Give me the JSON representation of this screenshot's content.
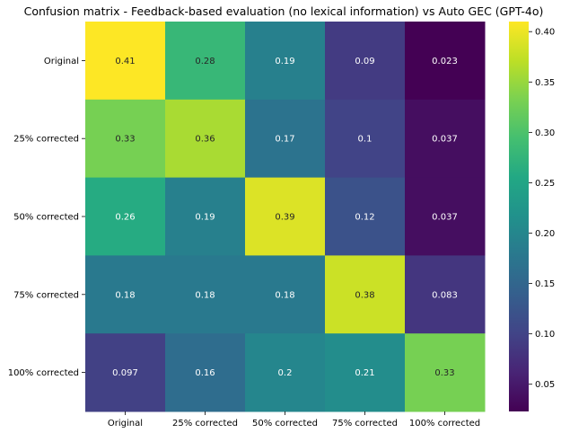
{
  "chart_data": {
    "type": "heatmap",
    "title": "Confusion matrix - Feedback-based evaluation (no lexical information) vs Auto GEC (GPT-4o)",
    "xlabel": "",
    "ylabel": "",
    "x_categories": [
      "Original",
      "25% corrected",
      "50% corrected",
      "75% corrected",
      "100% corrected"
    ],
    "y_categories": [
      "Original",
      "25% corrected",
      "50% corrected",
      "75% corrected",
      "100% corrected"
    ],
    "values": [
      [
        0.41,
        0.28,
        0.19,
        0.09,
        0.023
      ],
      [
        0.33,
        0.36,
        0.17,
        0.1,
        0.037
      ],
      [
        0.26,
        0.19,
        0.39,
        0.12,
        0.037
      ],
      [
        0.18,
        0.18,
        0.18,
        0.38,
        0.083
      ],
      [
        0.097,
        0.16,
        0.2,
        0.21,
        0.33
      ]
    ],
    "value_labels": [
      [
        "0.41",
        "0.28",
        "0.19",
        "0.09",
        "0.023"
      ],
      [
        "0.33",
        "0.36",
        "0.17",
        "0.1",
        "0.037"
      ],
      [
        "0.26",
        "0.19",
        "0.39",
        "0.12",
        "0.037"
      ],
      [
        "0.18",
        "0.18",
        "0.18",
        "0.38",
        "0.083"
      ],
      [
        "0.097",
        "0.16",
        "0.2",
        "0.21",
        "0.33"
      ]
    ],
    "colormap": "viridis",
    "colorbar": {
      "range": [
        0.023,
        0.41
      ],
      "ticks": [
        0.05,
        0.1,
        0.15,
        0.2,
        0.25,
        0.3,
        0.35,
        0.4
      ],
      "tick_labels": [
        "0.05",
        "0.10",
        "0.15",
        "0.20",
        "0.25",
        "0.30",
        "0.35",
        "0.40"
      ],
      "position": "right"
    },
    "grid": false
  }
}
